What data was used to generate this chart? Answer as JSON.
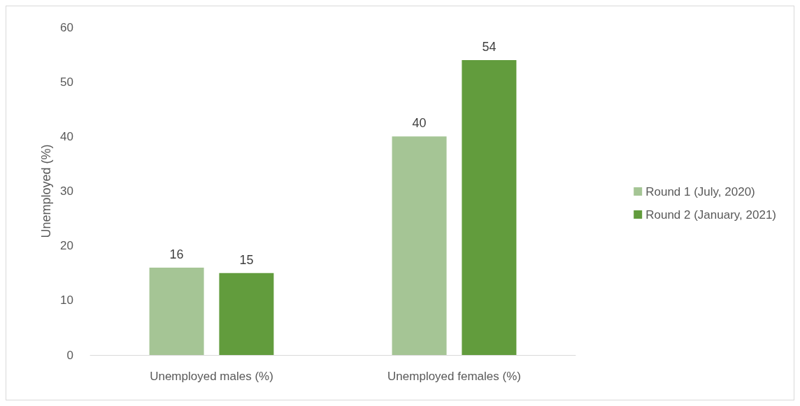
{
  "chart_data": {
    "type": "bar",
    "ylabel": "Unemployed (%)",
    "categories": [
      "Unemployed males (%)",
      "Unemployed females (%)"
    ],
    "series": [
      {
        "name": "Round 1 (July, 2020)",
        "color": "#a5c595",
        "values": [
          16,
          40
        ]
      },
      {
        "name": "Round 2 (January, 2021)",
        "color": "#629c3d",
        "values": [
          15,
          54
        ]
      }
    ],
    "ylim": [
      0,
      60
    ],
    "yticks": [
      0,
      10,
      20,
      30,
      40,
      50,
      60
    ],
    "grid": false,
    "legend": "right",
    "data_labels": true
  }
}
